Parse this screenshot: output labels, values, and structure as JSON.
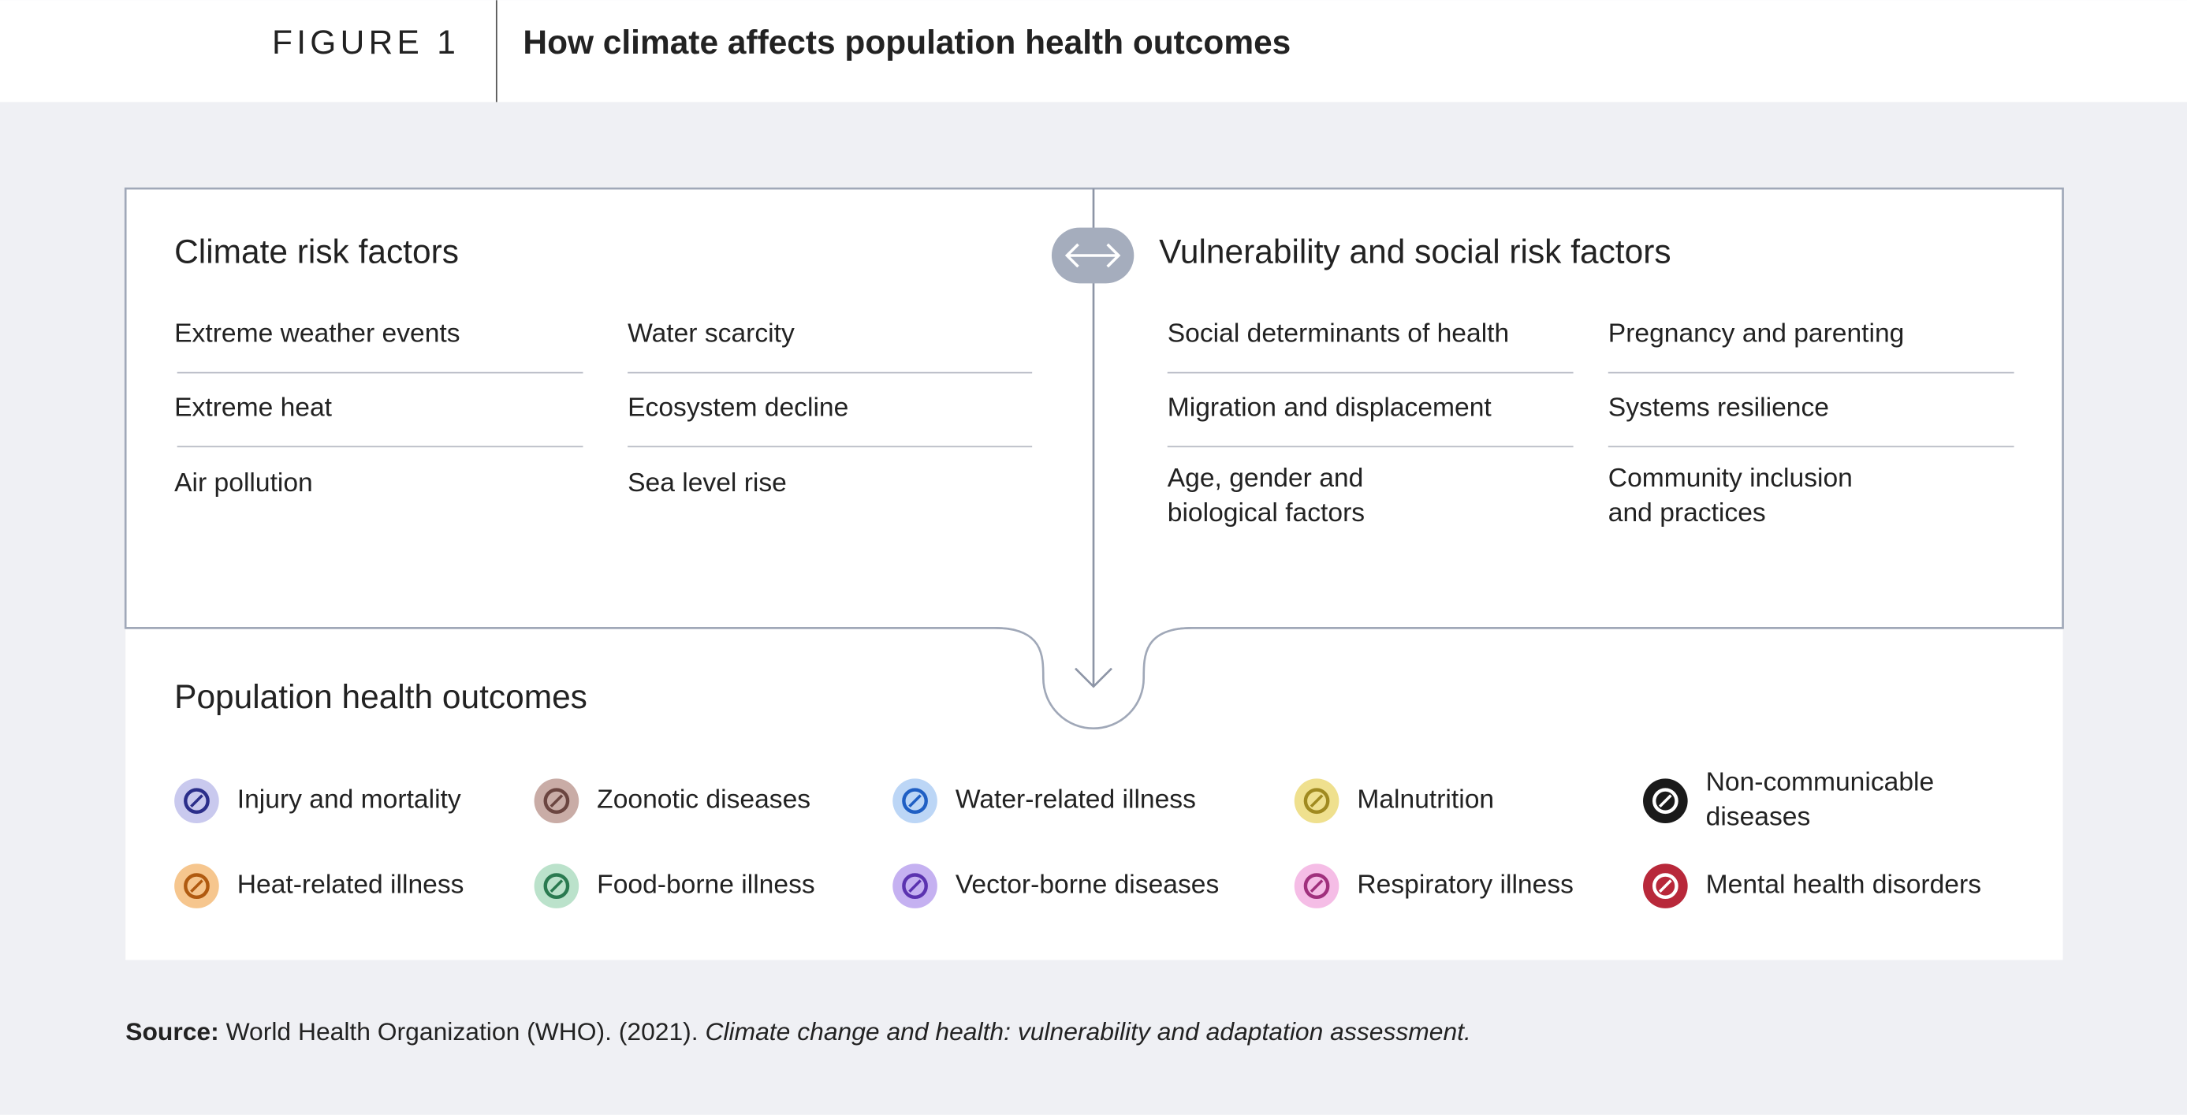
{
  "figure": {
    "label": "FIGURE 1",
    "title": "How climate affects population health outcomes"
  },
  "climate_risk": {
    "title": "Climate risk factors",
    "items": [
      [
        "Extreme weather events"
      ],
      [
        "Water scarcity"
      ],
      [
        "Extreme heat"
      ],
      [
        "Ecosystem decline"
      ],
      [
        "Air pollution"
      ],
      [
        "Sea level rise"
      ]
    ]
  },
  "vulnerability": {
    "title": "Vulnerability and social risk factors",
    "items": [
      [
        "Social determinants of health"
      ],
      [
        "Pregnancy and parenting"
      ],
      [
        "Migration and displacement"
      ],
      [
        "Systems resilience"
      ],
      [
        "Age, gender and",
        "biological factors"
      ],
      [
        "Community inclusion",
        "and practices"
      ]
    ]
  },
  "outcomes": {
    "title": "Population health outcomes",
    "items": [
      {
        "label": [
          "Injury and mortality"
        ],
        "color": "#c9c9ee",
        "icon_color": "#2b2e8a"
      },
      {
        "label": [
          "Zoonotic diseases"
        ],
        "color": "#c9aca6",
        "icon_color": "#6b4540"
      },
      {
        "label": [
          "Water-related illness"
        ],
        "color": "#bcd6f6",
        "icon_color": "#1f5fc4"
      },
      {
        "label": [
          "Malnutrition"
        ],
        "color": "#efe08e",
        "icon_color": "#a08a20"
      },
      {
        "label": [
          "Non-communicable",
          "diseases"
        ],
        "color": "#1a1a1a",
        "icon_color": "#ffffff"
      },
      {
        "label": [
          "Heat-related illness"
        ],
        "color": "#f6c68e",
        "icon_color": "#b05a10"
      },
      {
        "label": [
          "Food-borne illness"
        ],
        "color": "#bbe2cb",
        "icon_color": "#2a7a50"
      },
      {
        "label": [
          "Vector-borne diseases"
        ],
        "color": "#c5b1f1",
        "icon_color": "#5b33b0"
      },
      {
        "label": [
          "Respiratory illness"
        ],
        "color": "#f5bde6",
        "icon_color": "#a0307d"
      },
      {
        "label": [
          "Mental health disorders"
        ],
        "color": "#b8283a",
        "icon_color": "#ffffff"
      }
    ]
  },
  "source": {
    "label": "Source:",
    "text": "World Health Organization (WHO). (2021).",
    "citation": "Climate change and health: vulnerability and adaptation assessment."
  }
}
